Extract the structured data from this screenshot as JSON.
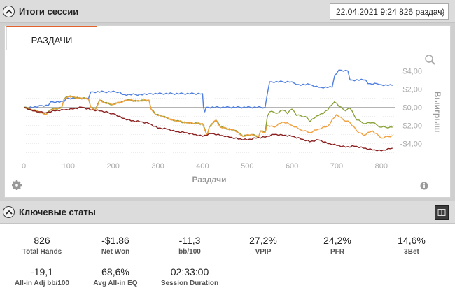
{
  "session_panel": {
    "title": "Итоги сессии",
    "selected_session": "22.04.2021 9:24 826 раздач)",
    "tab_label": "РАЗДАЧИ"
  },
  "chart_data": {
    "type": "line",
    "xlabel": "Раздачи",
    "ylabel": "Выигрыш",
    "xlim": [
      0,
      830
    ],
    "ylim": [
      -5.5,
      4.5
    ],
    "x_ticks": [
      "0",
      "100",
      "200",
      "300",
      "400",
      "500",
      "600",
      "700",
      "800"
    ],
    "y_ticks": [
      "$4,00",
      "$2,00",
      "$0,00",
      "-$2,00",
      "-$4,00"
    ],
    "series": [
      {
        "color": "#4f7fe0",
        "points": [
          [
            0,
            0
          ],
          [
            30,
            0
          ],
          [
            35,
            0.2
          ],
          [
            55,
            0.2
          ],
          [
            60,
            0.6
          ],
          [
            90,
            0.6
          ],
          [
            95,
            1.0
          ],
          [
            145,
            1.0
          ],
          [
            150,
            1.7
          ],
          [
            215,
            1.7
          ],
          [
            220,
            1.4
          ],
          [
            275,
            1.4
          ],
          [
            280,
            1.5
          ],
          [
            400,
            1.5
          ],
          [
            402,
            0
          ],
          [
            405,
            -0.5
          ],
          [
            408,
            0
          ],
          [
            540,
            0
          ],
          [
            545,
            1.5
          ],
          [
            550,
            2.8
          ],
          [
            600,
            2.8
          ],
          [
            610,
            2.5
          ],
          [
            640,
            2.5
          ],
          [
            660,
            2.2
          ],
          [
            690,
            2.2
          ],
          [
            695,
            3.4
          ],
          [
            705,
            4.1
          ],
          [
            725,
            4.0
          ],
          [
            730,
            3.0
          ],
          [
            765,
            3.0
          ],
          [
            770,
            2.6
          ],
          [
            790,
            2.6
          ],
          [
            795,
            2.5
          ],
          [
            825,
            2.4
          ]
        ],
        "label_visible": false
      },
      {
        "color": "#8aa23a",
        "points": [
          [
            0,
            0
          ],
          [
            20,
            -0.3
          ],
          [
            40,
            -0.6
          ],
          [
            50,
            -0.8
          ],
          [
            60,
            -0.3
          ],
          [
            85,
            0
          ],
          [
            90,
            0.9
          ],
          [
            100,
            1.2
          ],
          [
            130,
            1.0
          ],
          [
            145,
            0.9
          ],
          [
            150,
            0
          ],
          [
            160,
            -0.3
          ],
          [
            170,
            0.8
          ],
          [
            180,
            0.5
          ],
          [
            200,
            0.3
          ],
          [
            230,
            0.8
          ],
          [
            260,
            0.7
          ],
          [
            280,
            0.8
          ],
          [
            285,
            -0.2
          ],
          [
            295,
            -0.8
          ],
          [
            310,
            -1.0
          ],
          [
            340,
            -1.5
          ],
          [
            380,
            -1.8
          ],
          [
            400,
            -1.8
          ],
          [
            410,
            -3.1
          ],
          [
            415,
            -2.2
          ],
          [
            430,
            -1.4
          ],
          [
            440,
            -2.2
          ],
          [
            470,
            -2.5
          ],
          [
            480,
            -2.8
          ],
          [
            490,
            -3.2
          ],
          [
            510,
            -3.0
          ],
          [
            525,
            -3.3
          ],
          [
            530,
            -2.6
          ],
          [
            540,
            -2.8
          ],
          [
            545,
            -1.0
          ],
          [
            550,
            -0.5
          ],
          [
            570,
            -0.6
          ],
          [
            580,
            -0.3
          ],
          [
            590,
            -0.7
          ],
          [
            600,
            -0.2
          ],
          [
            610,
            -0.9
          ],
          [
            630,
            -1.0
          ],
          [
            640,
            -1.6
          ],
          [
            650,
            -1.2
          ],
          [
            660,
            -0.9
          ],
          [
            670,
            -0.7
          ],
          [
            680,
            -0.3
          ],
          [
            695,
            0.6
          ],
          [
            705,
            0.1
          ],
          [
            720,
            -0.4
          ],
          [
            730,
            -0.1
          ],
          [
            745,
            -1.4
          ],
          [
            765,
            -1.8
          ],
          [
            780,
            -1.7
          ],
          [
            800,
            -2.2
          ],
          [
            825,
            -2.2
          ]
        ],
        "label_visible": false
      },
      {
        "color": "#f2a03d",
        "points": [
          [
            0,
            0
          ],
          [
            20,
            -0.3
          ],
          [
            40,
            -0.6
          ],
          [
            50,
            -0.8
          ],
          [
            60,
            -0.3
          ],
          [
            85,
            0
          ],
          [
            90,
            0.9
          ],
          [
            100,
            1.2
          ],
          [
            130,
            1.0
          ],
          [
            145,
            0.9
          ],
          [
            150,
            0
          ],
          [
            160,
            -0.3
          ],
          [
            170,
            0.8
          ],
          [
            180,
            0.5
          ],
          [
            200,
            0.3
          ],
          [
            230,
            0.8
          ],
          [
            260,
            0.7
          ],
          [
            280,
            0.8
          ],
          [
            285,
            -0.2
          ],
          [
            295,
            -0.8
          ],
          [
            310,
            -1.0
          ],
          [
            340,
            -1.5
          ],
          [
            380,
            -1.8
          ],
          [
            400,
            -1.8
          ],
          [
            410,
            -3.1
          ],
          [
            415,
            -2.2
          ],
          [
            430,
            -1.4
          ],
          [
            440,
            -2.2
          ],
          [
            470,
            -2.5
          ],
          [
            480,
            -2.8
          ],
          [
            490,
            -3.2
          ],
          [
            510,
            -3.0
          ],
          [
            525,
            -3.3
          ],
          [
            530,
            -2.6
          ],
          [
            540,
            -2.8
          ],
          [
            545,
            -2.0
          ],
          [
            560,
            -2.2
          ],
          [
            580,
            -1.6
          ],
          [
            600,
            -2.0
          ],
          [
            620,
            -2.5
          ],
          [
            640,
            -2.8
          ],
          [
            660,
            -2.4
          ],
          [
            680,
            -2.1
          ],
          [
            700,
            -0.8
          ],
          [
            715,
            -1.4
          ],
          [
            730,
            -1.7
          ],
          [
            745,
            -2.6
          ],
          [
            760,
            -3.1
          ],
          [
            780,
            -2.6
          ],
          [
            800,
            -3.4
          ],
          [
            825,
            -3.1
          ]
        ],
        "label_visible": false
      },
      {
        "color": "#8b1f1f",
        "points": [
          [
            0,
            0
          ],
          [
            20,
            -0.4
          ],
          [
            35,
            -0.5
          ],
          [
            50,
            -0.6
          ],
          [
            70,
            -0.4
          ],
          [
            90,
            -0.3
          ],
          [
            110,
            -0.2
          ],
          [
            130,
            0
          ],
          [
            150,
            -0.3
          ],
          [
            170,
            -0.4
          ],
          [
            200,
            -0.7
          ],
          [
            220,
            -1.2
          ],
          [
            240,
            -1.5
          ],
          [
            260,
            -1.6
          ],
          [
            280,
            -1.8
          ],
          [
            300,
            -2.3
          ],
          [
            320,
            -2.4
          ],
          [
            340,
            -2.7
          ],
          [
            360,
            -2.8
          ],
          [
            380,
            -3.0
          ],
          [
            400,
            -3.2
          ],
          [
            420,
            -2.9
          ],
          [
            440,
            -3.1
          ],
          [
            460,
            -3.3
          ],
          [
            480,
            -3.5
          ],
          [
            500,
            -3.6
          ],
          [
            520,
            -3.4
          ],
          [
            540,
            -3.3
          ],
          [
            560,
            -3.0
          ],
          [
            580,
            -3.1
          ],
          [
            600,
            -3.2
          ],
          [
            620,
            -3.5
          ],
          [
            640,
            -3.8
          ],
          [
            660,
            -3.6
          ],
          [
            680,
            -4.0
          ],
          [
            700,
            -4.2
          ],
          [
            720,
            -4.4
          ],
          [
            740,
            -4.3
          ],
          [
            760,
            -4.5
          ],
          [
            780,
            -4.7
          ],
          [
            800,
            -4.8
          ],
          [
            825,
            -4.5
          ]
        ],
        "label_visible": false
      }
    ]
  },
  "key_stats": {
    "title": "Ключевые статы",
    "items": [
      {
        "value": "826",
        "label": "Total Hands"
      },
      {
        "value": "-$1.86",
        "label": "Net Won"
      },
      {
        "value": "-11,3",
        "label": "bb/100"
      },
      {
        "value": "27,2%",
        "label": "VPIP"
      },
      {
        "value": "24,2%",
        "label": "PFR"
      },
      {
        "value": "14,6%",
        "label": "3Bet"
      },
      {
        "value": "-19,1",
        "label": "All-in Adj bb/100"
      },
      {
        "value": "68,6%",
        "label": "Avg All-in EQ"
      },
      {
        "value": "02:33:00",
        "label": "Session Duration"
      }
    ]
  },
  "icons": {
    "collapse": "chevron-up-icon",
    "zoom": "magnifier-icon",
    "settings": "gear-icon",
    "info": "info-icon",
    "layout": "layout-columns-icon"
  }
}
